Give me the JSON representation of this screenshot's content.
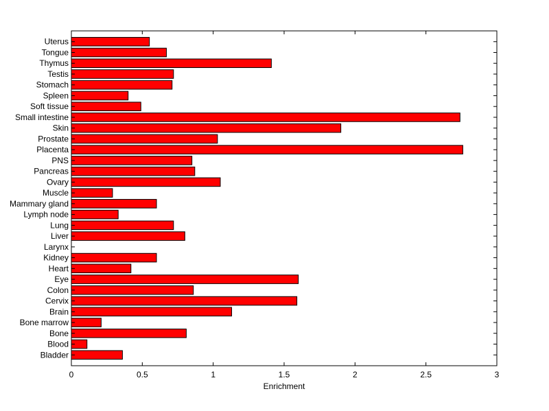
{
  "chart_data": {
    "type": "bar",
    "orientation": "horizontal",
    "xlabel": "Enrichment",
    "ylabel": "",
    "title": "",
    "xlim": [
      0,
      3
    ],
    "xticks": [
      "0",
      "0.5",
      "1",
      "1.5",
      "2",
      "2.5",
      "3"
    ],
    "xtick_values": [
      0,
      0.5,
      1,
      1.5,
      2,
      2.5,
      3
    ],
    "grid": false,
    "bar_color": "#ff0000",
    "bar_edge_color": "#000000",
    "categories": [
      "Uterus",
      "Tongue",
      "Thymus",
      "Testis",
      "Stomach",
      "Spleen",
      "Soft tissue",
      "Small intestine",
      "Skin",
      "Prostate",
      "Placenta",
      "PNS",
      "Pancreas",
      "Ovary",
      "Muscle",
      "Mammary gland",
      "Lymph node",
      "Lung",
      "Liver",
      "Larynx",
      "Kidney",
      "Heart",
      "Eye",
      "Colon",
      "Cervix",
      "Brain",
      "Bone marrow",
      "Bone",
      "Blood",
      "Bladder"
    ],
    "values": [
      0.55,
      0.67,
      1.41,
      0.72,
      0.71,
      0.4,
      0.49,
      2.74,
      1.9,
      1.03,
      2.76,
      0.85,
      0.87,
      1.05,
      0.29,
      0.6,
      0.33,
      0.72,
      0.8,
      0.0,
      0.6,
      0.42,
      1.6,
      0.86,
      1.59,
      1.13,
      0.21,
      0.81,
      0.11,
      0.36
    ]
  }
}
